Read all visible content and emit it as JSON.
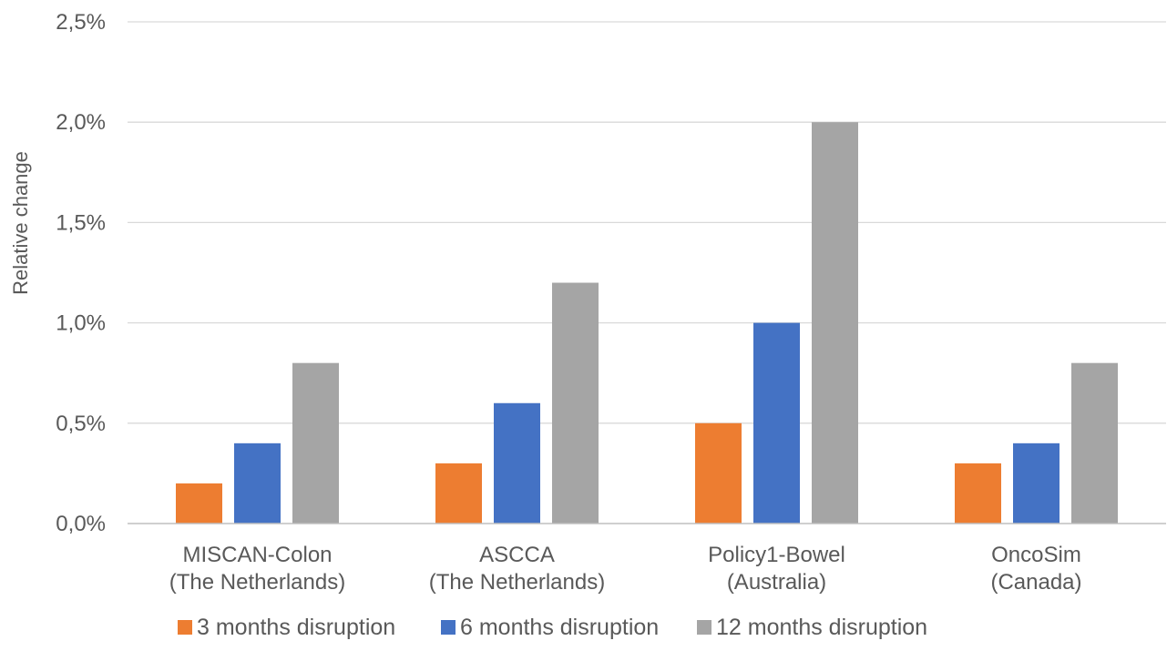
{
  "chart_data": {
    "type": "bar",
    "title": "",
    "xlabel": "",
    "ylabel": "Relative change",
    "ylim": [
      0,
      0.025
    ],
    "yticks": [
      0,
      0.005,
      0.01,
      0.015,
      0.02,
      0.025
    ],
    "ytick_labels": [
      "0,0%",
      "0,5%",
      "1,0%",
      "1,5%",
      "2,0%",
      "2,5%"
    ],
    "grid": true,
    "legend_position": "bottom",
    "categories": [
      [
        "MISCAN-Colon",
        "(The Netherlands)"
      ],
      [
        "ASCCA",
        "(The Netherlands)"
      ],
      [
        "Policy1-Bowel",
        "(Australia)"
      ],
      [
        "OncoSim",
        "(Canada)"
      ]
    ],
    "series": [
      {
        "name": "3 months disruption",
        "color": "#ed7d31",
        "values": [
          0.002,
          0.003,
          0.005,
          0.003
        ]
      },
      {
        "name": "6 months disruption",
        "color": "#4472c4",
        "values": [
          0.004,
          0.006,
          0.01,
          0.004
        ]
      },
      {
        "name": "12 months disruption",
        "color": "#a5a5a5",
        "values": [
          0.008,
          0.012,
          0.02,
          0.008
        ]
      }
    ]
  }
}
